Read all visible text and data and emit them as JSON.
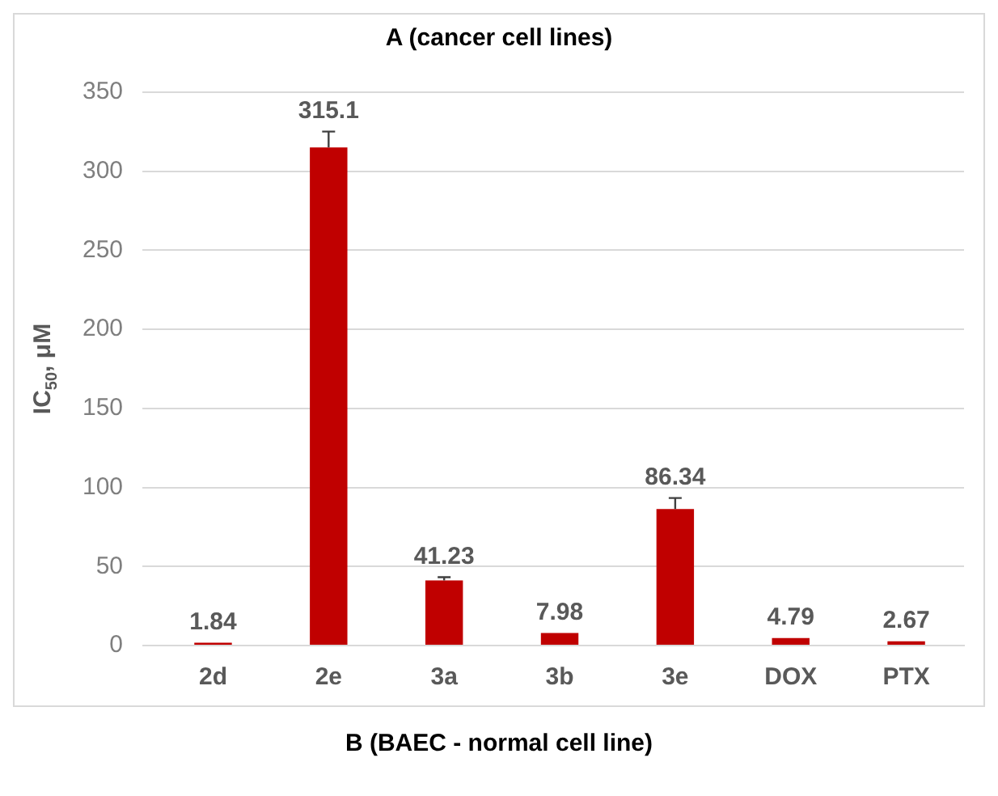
{
  "chart_data": {
    "type": "bar",
    "title": "A (cancer cell lines)",
    "ylabel": "IC$_{50}$, μM",
    "annotations": [
      "B (BAEC - normal cell line)"
    ],
    "categories": [
      "2d",
      "2e",
      "3a",
      "3b",
      "3e",
      "DOX",
      "PTX"
    ],
    "values": [
      1.84,
      315.1,
      41.23,
      7.98,
      86.34,
      4.79,
      2.67
    ],
    "errors": [
      null,
      10,
      2,
      null,
      7,
      null,
      null
    ],
    "color": "#c00000",
    "data_labels": true,
    "ylim": [
      0,
      350
    ],
    "yticks": [
      0,
      50,
      100,
      150,
      200,
      250,
      300,
      350
    ],
    "grid": "y",
    "legend": false
  }
}
